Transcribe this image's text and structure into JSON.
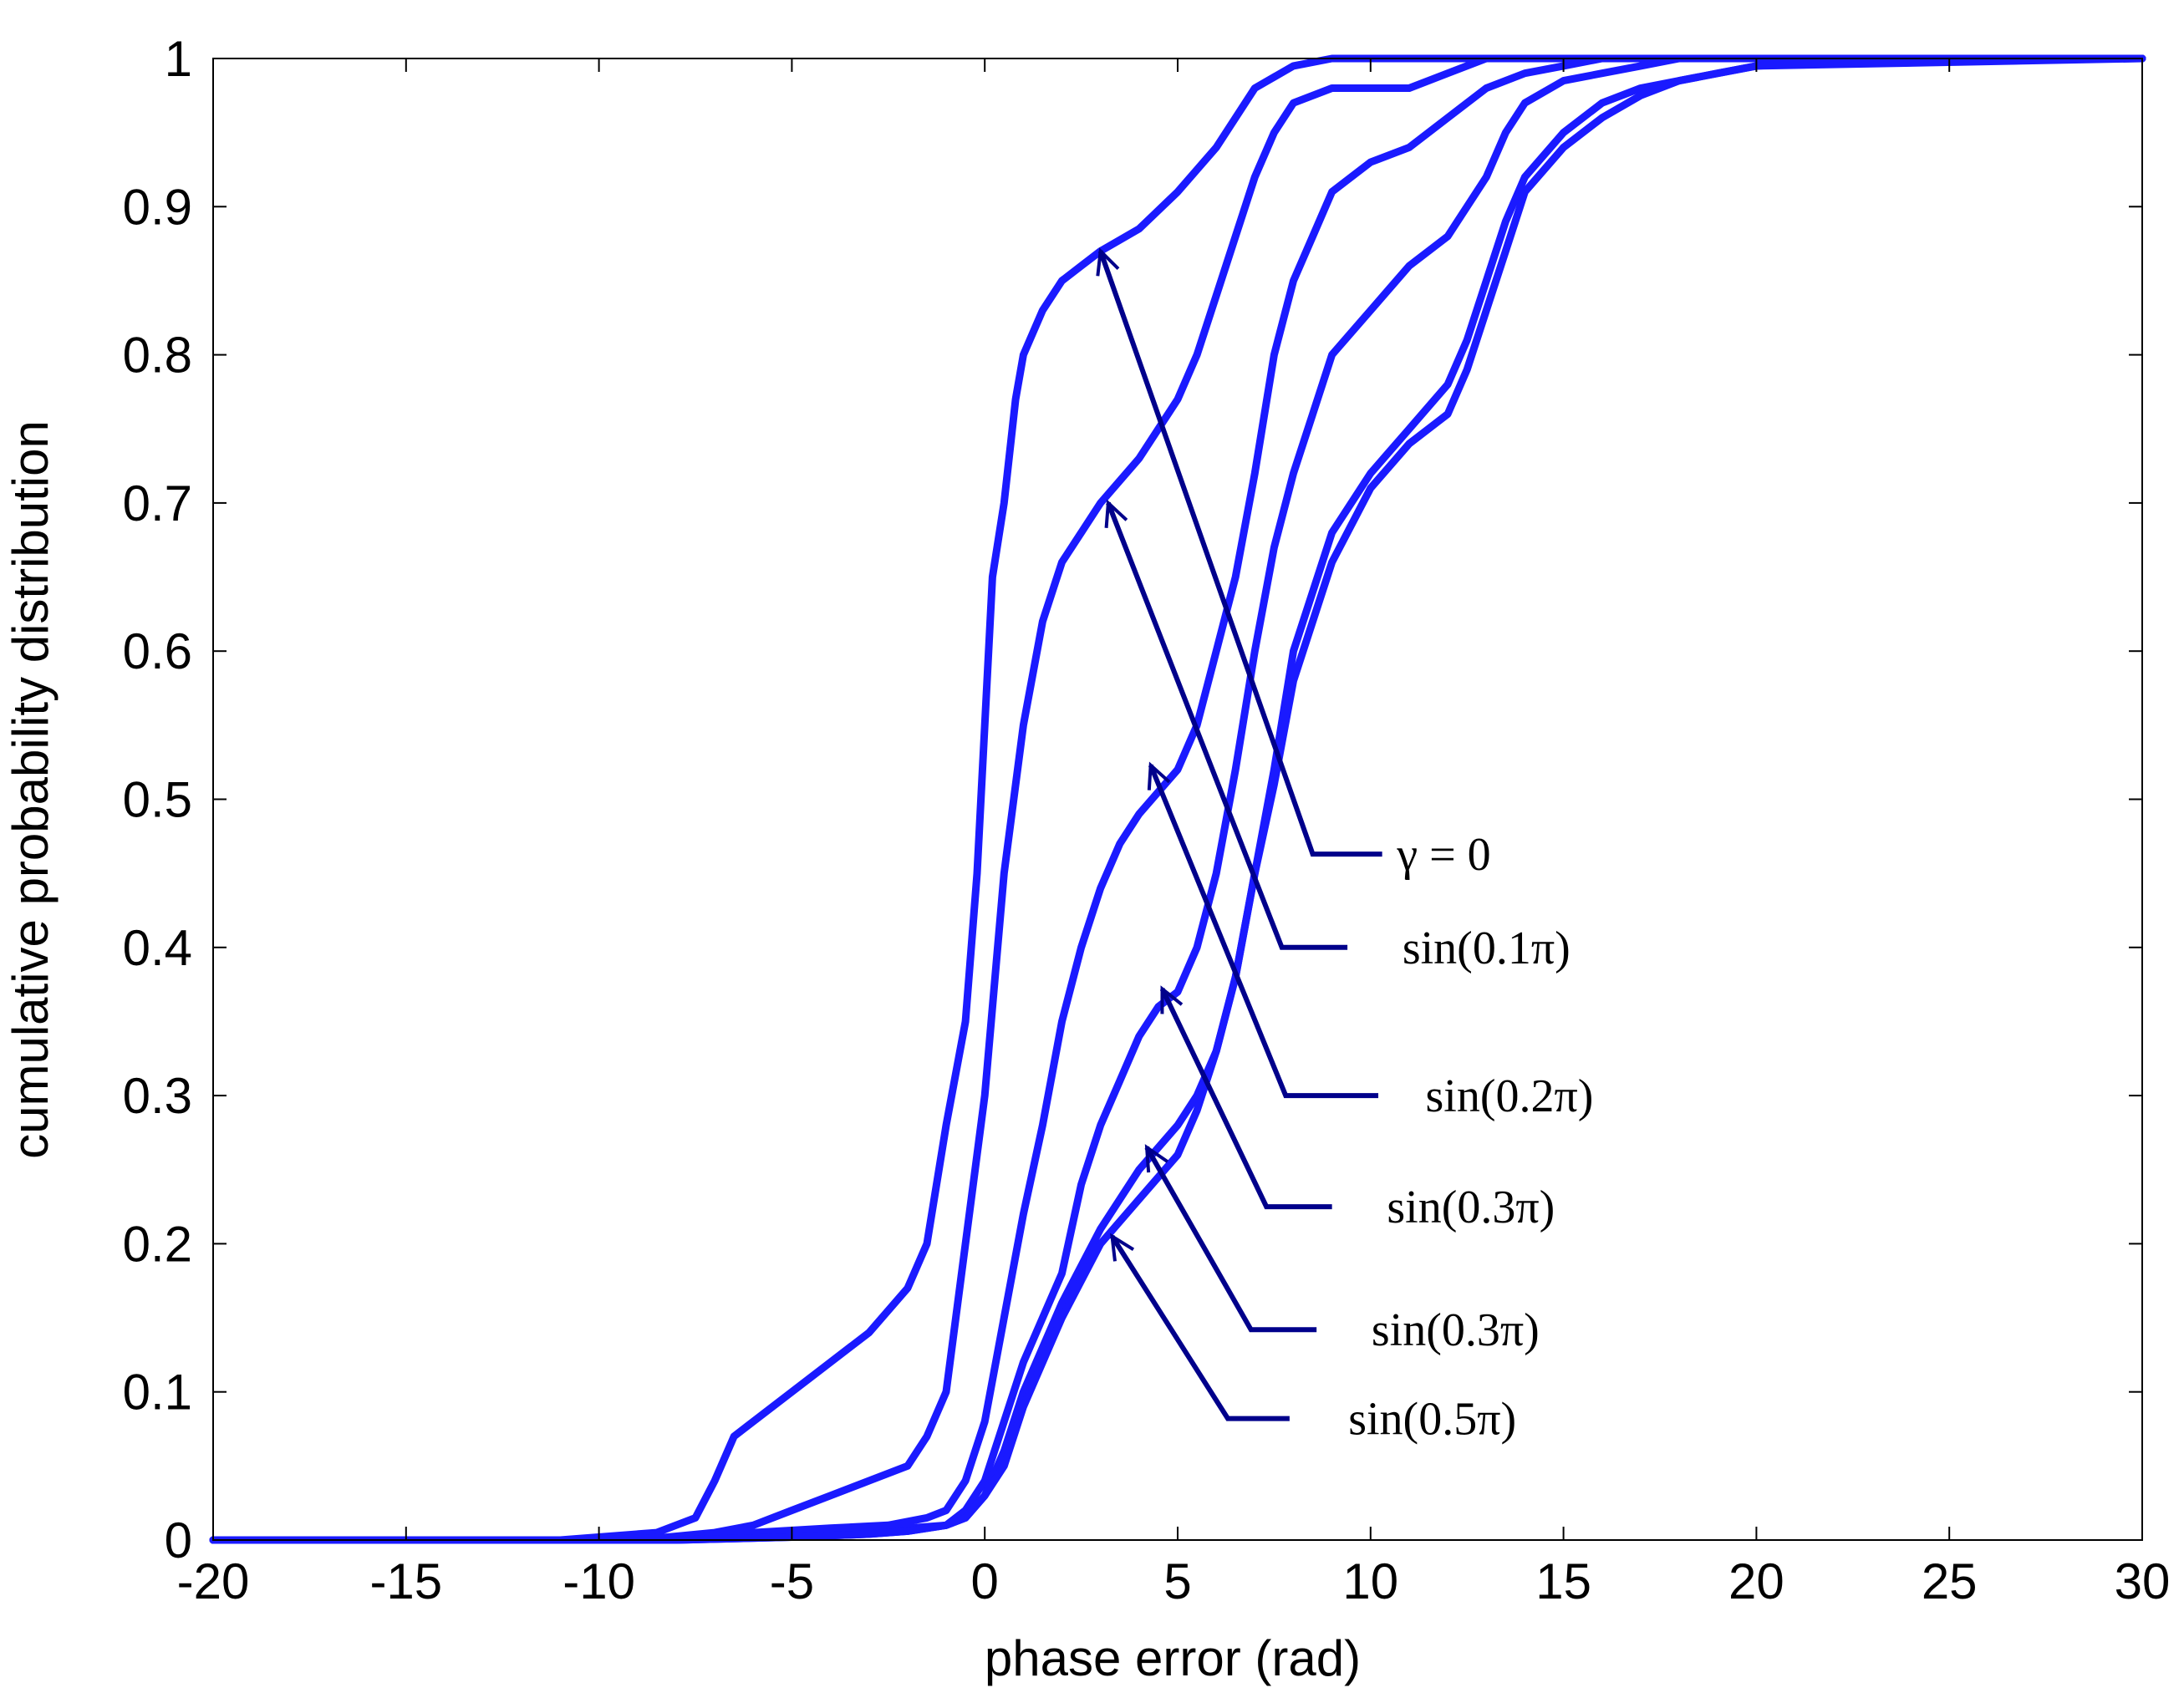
{
  "chart_data": {
    "type": "line",
    "title": "",
    "xlabel": "phase error (rad)",
    "ylabel": "cumulative probability distribution",
    "xlim": [
      -20,
      30
    ],
    "ylim": [
      0,
      1
    ],
    "xticks": [
      -20,
      -15,
      -10,
      -5,
      0,
      5,
      10,
      15,
      20,
      25,
      30
    ],
    "xtick_labels": [
      "-20",
      "-15",
      "-10",
      "-5",
      "0",
      "5",
      "10",
      "15",
      "20",
      "25",
      "30"
    ],
    "yticks": [
      0,
      0.1,
      0.2,
      0.3,
      0.4,
      0.5,
      0.6,
      0.7,
      0.8,
      0.9,
      1
    ],
    "ytick_labels": [
      "0",
      "0.1",
      "0.2",
      "0.3",
      "0.4",
      "0.5",
      "0.6",
      "0.7",
      "0.8",
      "0.9",
      "1"
    ],
    "grid": false,
    "line_color": "#1a1aff",
    "annotation_color": "#00008b",
    "series": [
      {
        "name": "γ = 0",
        "x": [
          -20,
          -11,
          -8.5,
          -7.5,
          -7,
          -6.5,
          -6,
          -5,
          -4,
          -3,
          -2,
          -1.5,
          -1,
          -0.5,
          -0.2,
          0,
          0.2,
          0.5,
          0.8,
          1,
          1.5,
          2,
          2.5,
          3,
          4,
          5,
          6,
          7,
          8,
          9,
          30
        ],
        "y": [
          0,
          0,
          0.005,
          0.015,
          0.04,
          0.07,
          0.08,
          0.1,
          0.12,
          0.14,
          0.17,
          0.2,
          0.28,
          0.35,
          0.45,
          0.55,
          0.65,
          0.7,
          0.77,
          0.8,
          0.83,
          0.85,
          0.86,
          0.87,
          0.885,
          0.91,
          0.94,
          0.98,
          0.995,
          1,
          1
        ]
      },
      {
        "name": "sin(0.1π)",
        "x": [
          -20,
          -9,
          -7,
          -6,
          -5,
          -4,
          -3,
          -2,
          -1.5,
          -1,
          -0.5,
          0,
          0.5,
          1,
          1.5,
          2,
          2.5,
          3,
          4,
          5,
          5.5,
          6,
          6.5,
          7,
          7.5,
          8,
          9,
          10,
          11,
          12,
          13,
          30
        ],
        "y": [
          0,
          0,
          0.005,
          0.01,
          0.02,
          0.03,
          0.04,
          0.05,
          0.07,
          0.1,
          0.2,
          0.3,
          0.45,
          0.55,
          0.62,
          0.66,
          0.68,
          0.7,
          0.73,
          0.77,
          0.8,
          0.84,
          0.88,
          0.92,
          0.95,
          0.97,
          0.98,
          0.98,
          0.98,
          0.99,
          1,
          1
        ]
      },
      {
        "name": "sin(0.2π)",
        "x": [
          -20,
          -10,
          -8,
          -6,
          -4,
          -2.5,
          -1.5,
          -1,
          -0.5,
          0,
          0.5,
          1,
          1.5,
          2,
          2.5,
          3,
          3.5,
          4,
          5,
          5.5,
          6,
          6.5,
          7,
          7.5,
          8,
          8.5,
          9,
          10,
          11,
          12,
          13,
          14,
          15,
          16,
          30
        ],
        "y": [
          0,
          0,
          0.002,
          0.005,
          0.008,
          0.01,
          0.015,
          0.02,
          0.04,
          0.08,
          0.15,
          0.22,
          0.28,
          0.35,
          0.4,
          0.44,
          0.47,
          0.49,
          0.52,
          0.55,
          0.6,
          0.65,
          0.72,
          0.8,
          0.85,
          0.88,
          0.91,
          0.93,
          0.94,
          0.96,
          0.98,
          0.99,
          0.995,
          1,
          1
        ]
      },
      {
        "name": "sin(0.3π)",
        "x": [
          -20,
          -10,
          -8,
          -6,
          -4,
          -2,
          -1,
          -0.5,
          0,
          0.5,
          1,
          2,
          2.5,
          3,
          3.5,
          4,
          4.5,
          5,
          5.5,
          6,
          6.5,
          7,
          7.5,
          8,
          8.5,
          9,
          10,
          11,
          12,
          12.5,
          13,
          13.5,
          14,
          15,
          16,
          17,
          18,
          30
        ],
        "y": [
          0,
          0,
          0.002,
          0.004,
          0.006,
          0.008,
          0.01,
          0.02,
          0.04,
          0.08,
          0.12,
          0.18,
          0.24,
          0.28,
          0.31,
          0.34,
          0.36,
          0.37,
          0.4,
          0.45,
          0.52,
          0.6,
          0.67,
          0.72,
          0.76,
          0.8,
          0.83,
          0.86,
          0.88,
          0.9,
          0.92,
          0.95,
          0.97,
          0.985,
          0.99,
          0.995,
          1,
          1
        ]
      },
      {
        "name": "sin(0.3π)",
        "x": [
          -20,
          -8,
          -5,
          -3,
          -2,
          -1,
          -0.5,
          0,
          0.5,
          1,
          2,
          3,
          4,
          5,
          5.5,
          6,
          6.5,
          7,
          7.5,
          8,
          9,
          10,
          11,
          12,
          12.5,
          13,
          13.5,
          14,
          15,
          16,
          17,
          18,
          19,
          20,
          30
        ],
        "y": [
          0,
          0,
          0.002,
          0.004,
          0.006,
          0.01,
          0.015,
          0.03,
          0.06,
          0.1,
          0.16,
          0.21,
          0.25,
          0.28,
          0.3,
          0.33,
          0.38,
          0.45,
          0.52,
          0.6,
          0.68,
          0.72,
          0.75,
          0.78,
          0.81,
          0.85,
          0.89,
          0.92,
          0.95,
          0.97,
          0.98,
          0.985,
          0.99,
          0.995,
          1
        ]
      },
      {
        "name": "sin(0.5π)",
        "x": [
          -20,
          -8,
          -5,
          -3,
          -2,
          -1,
          -0.5,
          0,
          0.5,
          1,
          2,
          3,
          4,
          5,
          5.5,
          6,
          6.5,
          7,
          7.5,
          8,
          9,
          10,
          11,
          12,
          12.5,
          13,
          13.5,
          14,
          15,
          16,
          17,
          18,
          19,
          20,
          24,
          30
        ],
        "y": [
          0,
          0,
          0.002,
          0.004,
          0.006,
          0.01,
          0.015,
          0.03,
          0.05,
          0.09,
          0.15,
          0.2,
          0.23,
          0.26,
          0.29,
          0.33,
          0.38,
          0.45,
          0.51,
          0.58,
          0.66,
          0.71,
          0.74,
          0.76,
          0.79,
          0.83,
          0.87,
          0.91,
          0.94,
          0.96,
          0.975,
          0.985,
          0.99,
          0.995,
          1,
          1
        ]
      }
    ],
    "annotations": [
      {
        "label": "γ = 0",
        "arrow_to": [
          3,
          0.87
        ],
        "elbow": [
          8.5,
          0.463
        ],
        "end": [
          10.3,
          0.463
        ],
        "text_at": [
          11.9,
          0.463
        ]
      },
      {
        "label": "sin(0.1π)",
        "arrow_to": [
          3.2,
          0.7
        ],
        "elbow": [
          7.7,
          0.4
        ],
        "end": [
          9.4,
          0.4
        ],
        "text_at": [
          13.0,
          0.4
        ]
      },
      {
        "label": "sin(0.2π)",
        "arrow_to": [
          4.3,
          0.523
        ],
        "elbow": [
          7.8,
          0.3
        ],
        "end": [
          10.2,
          0.3
        ],
        "text_at": [
          13.6,
          0.3
        ]
      },
      {
        "label": "sin(0.3π)",
        "arrow_to": [
          4.6,
          0.372
        ],
        "elbow": [
          7.3,
          0.225
        ],
        "end": [
          9.0,
          0.225
        ],
        "text_at": [
          12.6,
          0.225
        ]
      },
      {
        "label": "sin(0.3π)",
        "arrow_to": [
          4.2,
          0.265
        ],
        "elbow": [
          6.9,
          0.142
        ],
        "end": [
          8.6,
          0.142
        ],
        "text_at": [
          12.2,
          0.142
        ]
      },
      {
        "label": "sin(0.5π)",
        "arrow_to": [
          3.3,
          0.205
        ],
        "elbow": [
          6.3,
          0.082
        ],
        "end": [
          7.9,
          0.082
        ],
        "text_at": [
          11.6,
          0.082
        ]
      }
    ]
  }
}
